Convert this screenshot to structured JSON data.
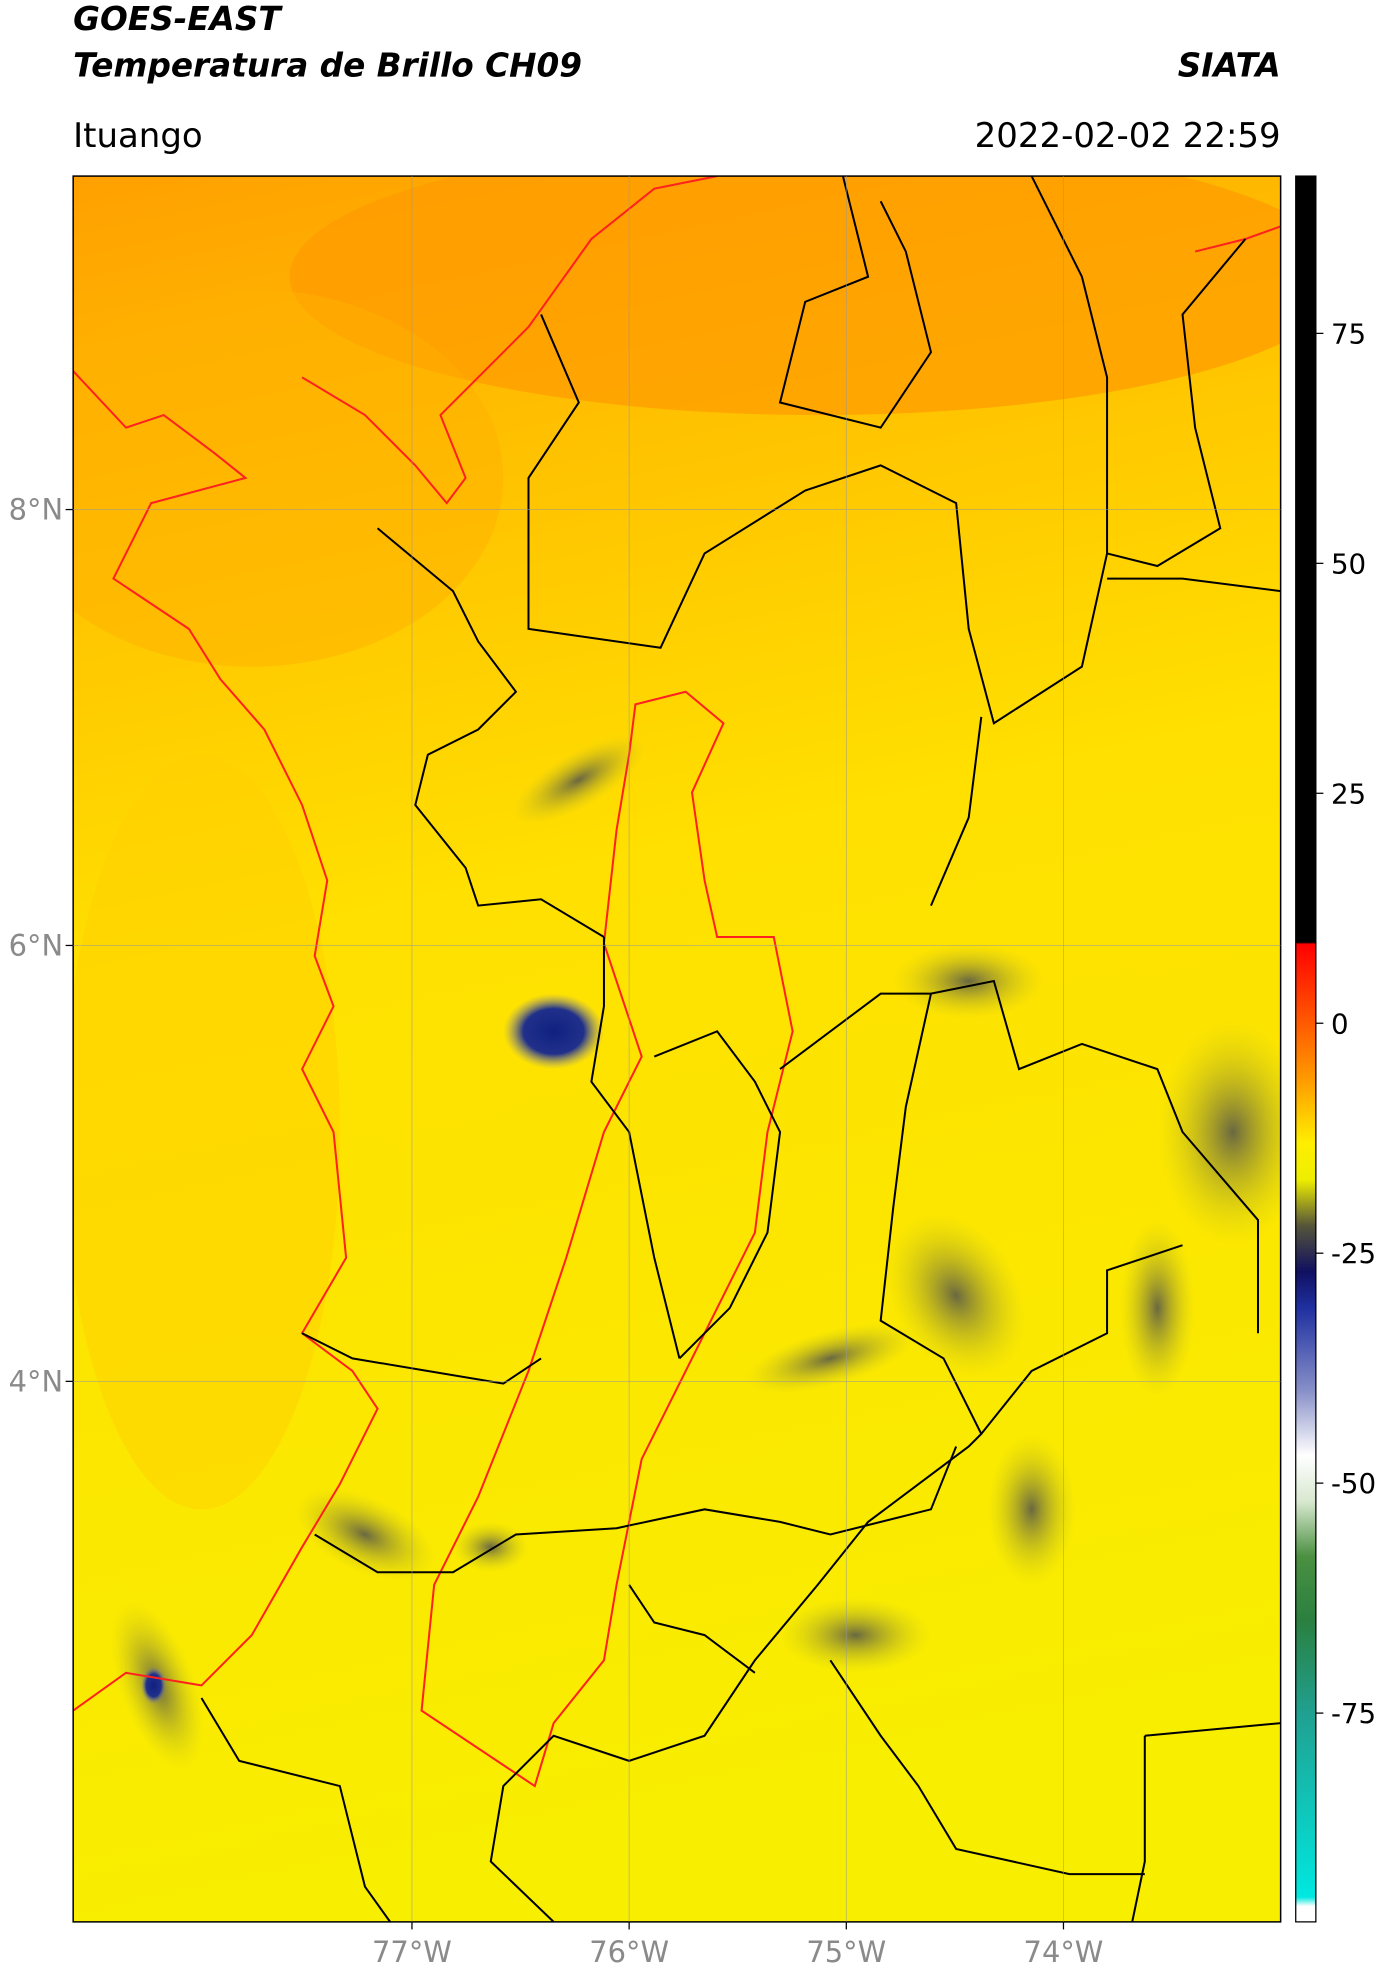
{
  "chart_data": {
    "type": "map",
    "title": "GOES-EAST",
    "subtitle": "Temperatura de Brillo CH09",
    "source": "SIATA",
    "location": "Ituango",
    "datetime": "2022-02-02 22:59",
    "xlim": [
      -78.56,
      -73.0
    ],
    "ylim": [
      1.52,
      9.53
    ],
    "xticks": [
      {
        "value": -77,
        "label": "77°W"
      },
      {
        "value": -76,
        "label": "76°W"
      },
      {
        "value": -75,
        "label": "75°W"
      },
      {
        "value": -74,
        "label": "74°W"
      }
    ],
    "yticks": [
      {
        "value": 8,
        "label": "8°N"
      },
      {
        "value": 6,
        "label": "6°N"
      },
      {
        "value": 4,
        "label": "4°N"
      }
    ],
    "grid": true,
    "colorbar": {
      "lim": [
        -97.7,
        92.1
      ],
      "ticks": [
        75,
        50,
        25,
        0,
        -25,
        -50,
        -75
      ],
      "colorscale": [
        [
          92.1,
          "#000000"
        ],
        [
          8.8,
          "#000000"
        ],
        [
          8.6,
          "#ff0000"
        ],
        [
          -6,
          "#ff9900"
        ],
        [
          -13,
          "#ffee00"
        ],
        [
          -17,
          "#eeee00"
        ],
        [
          -22,
          "#55553a"
        ],
        [
          -27,
          "#101060"
        ],
        [
          -31,
          "#2030a0"
        ],
        [
          -40,
          "#8890c8"
        ],
        [
          -47,
          "#ffffff"
        ],
        [
          -52,
          "#d8e8d0"
        ],
        [
          -58,
          "#4a9040"
        ],
        [
          -65,
          "#2a8040"
        ],
        [
          -75,
          "#20a090"
        ],
        [
          -95,
          "#00e8e0"
        ],
        [
          -96,
          "#ffffff"
        ],
        [
          -97.7,
          "#ffffff"
        ]
      ]
    }
  }
}
